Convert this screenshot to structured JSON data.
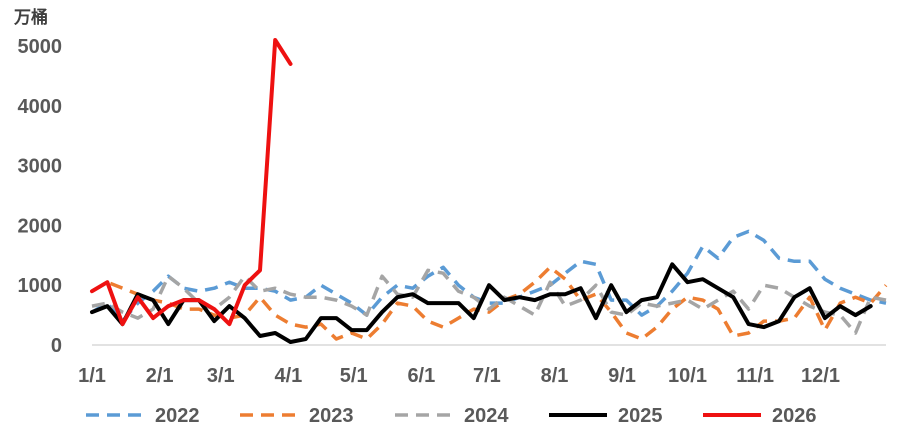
{
  "chart_data": {
    "type": "line",
    "unit_label": "万桶",
    "ylim": [
      0,
      5000
    ],
    "yticks": [
      0,
      1000,
      2000,
      3000,
      4000,
      5000
    ],
    "xlim": [
      0,
      52
    ],
    "x_ticks": [
      {
        "label": "1/1",
        "week": 0
      },
      {
        "label": "2/1",
        "week": 4.43
      },
      {
        "label": "3/1",
        "week": 8.43
      },
      {
        "label": "4/1",
        "week": 12.86
      },
      {
        "label": "5/1",
        "week": 17.14
      },
      {
        "label": "6/1",
        "week": 21.57
      },
      {
        "label": "7/1",
        "week": 25.86
      },
      {
        "label": "8/1",
        "week": 30.29
      },
      {
        "label": "9/1",
        "week": 34.71
      },
      {
        "label": "10/1",
        "week": 39.0
      },
      {
        "label": "11/1",
        "week": 43.43
      },
      {
        "label": "12/1",
        "week": 47.71
      }
    ],
    "grid": false,
    "legend_position": "bottom",
    "series": [
      {
        "name": "2022",
        "color": "#5B9BD5",
        "dash": "dashed",
        "values": [
          550,
          700,
          400,
          700,
          900,
          1150,
          950,
          900,
          950,
          1050,
          950,
          950,
          900,
          750,
          800,
          1000,
          850,
          700,
          500,
          800,
          1000,
          950,
          1150,
          1300,
          1000,
          800,
          700,
          700,
          800,
          900,
          1000,
          1200,
          1400,
          1350,
          750,
          750,
          500,
          650,
          900,
          1200,
          1650,
          1450,
          1800,
          1900,
          1750,
          1450,
          1400,
          1400,
          1100,
          950,
          850,
          750,
          700
        ]
      },
      {
        "name": "2023",
        "color": "#ED7D31",
        "dash": "dashed",
        "values": [
          900,
          1050,
          950,
          850,
          750,
          700,
          600,
          600,
          500,
          450,
          500,
          800,
          500,
          350,
          300,
          350,
          100,
          200,
          100,
          350,
          700,
          650,
          400,
          300,
          450,
          600,
          550,
          750,
          850,
          1050,
          1300,
          1100,
          750,
          850,
          550,
          200,
          100,
          300,
          600,
          800,
          750,
          600,
          150,
          200,
          400,
          400,
          450,
          800,
          250,
          700,
          800,
          700,
          1000
        ]
      },
      {
        "name": "2024",
        "color": "#A5A5A5",
        "dash": "dashed",
        "values": [
          650,
          700,
          550,
          450,
          600,
          1150,
          950,
          700,
          600,
          800,
          1150,
          900,
          950,
          850,
          800,
          800,
          750,
          650,
          500,
          1150,
          850,
          800,
          1250,
          1200,
          900,
          800,
          600,
          800,
          650,
          500,
          1050,
          650,
          750,
          1000,
          550,
          500,
          700,
          650,
          700,
          750,
          600,
          750,
          900,
          600,
          1000,
          950,
          800,
          650,
          550,
          500,
          200,
          800,
          750
        ]
      },
      {
        "name": "2025",
        "color": "#000000",
        "dash": "solid",
        "values": [
          550,
          650,
          350,
          850,
          750,
          350,
          750,
          750,
          400,
          650,
          450,
          150,
          200,
          50,
          100,
          450,
          450,
          250,
          250,
          550,
          800,
          850,
          700,
          700,
          700,
          450,
          1000,
          750,
          800,
          750,
          850,
          850,
          950,
          450,
          1000,
          550,
          750,
          800,
          1350,
          1050,
          1100,
          950,
          800,
          350,
          300,
          400,
          800,
          950,
          450,
          650,
          500,
          650
        ]
      },
      {
        "name": "2026",
        "color": "#EE1111",
        "dash": "solid",
        "values": [
          900,
          1050,
          350,
          800,
          450,
          650,
          750,
          750,
          600,
          350,
          1000,
          1250,
          5100,
          4700
        ]
      }
    ]
  }
}
